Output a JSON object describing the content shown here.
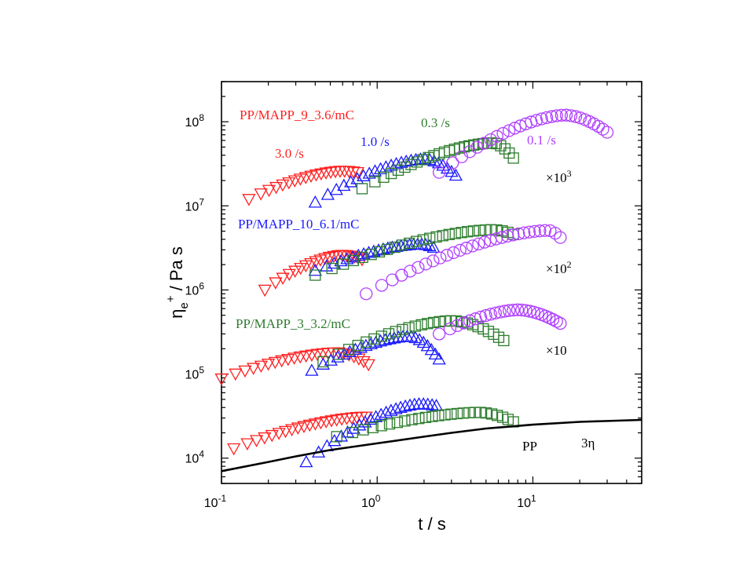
{
  "chart_data": {
    "type": "scatter",
    "xlabel": "t / s",
    "ylabel": "η_e^+ / Pa s",
    "xscale": "log",
    "yscale": "log",
    "xlim": [
      0.1,
      50
    ],
    "ylim": [
      5000,
      300000000
    ],
    "grid": false,
    "legend": "none",
    "x_ticks": [
      {
        "value": 0.1,
        "base": "10",
        "exp": "-1"
      },
      {
        "value": 1,
        "base": "10",
        "exp": "0"
      },
      {
        "value": 10,
        "base": "10",
        "exp": "1"
      }
    ],
    "y_ticks": [
      {
        "value": 10000,
        "base": "10",
        "exp": "4"
      },
      {
        "value": 100000,
        "base": "10",
        "exp": "5"
      },
      {
        "value": 1000000,
        "base": "10",
        "exp": "6"
      },
      {
        "value": 10000000,
        "base": "10",
        "exp": "7"
      },
      {
        "value": 100000000,
        "base": "10",
        "exp": "8"
      }
    ],
    "colors": {
      "rate_3_0": "#ff2020",
      "rate_1_0": "#1a1aff",
      "rate_0_3": "#2e7d2e",
      "rate_0_1": "#b040ff",
      "linear": "#000000"
    },
    "groups": [
      {
        "label": "PP",
        "shift_label": "",
        "series": [
          {
            "rate": 3.0,
            "marker": "triangle-down",
            "t_start": 0.12,
            "t_end": 0.85,
            "y_start": 13000,
            "y_end": 31000,
            "n": 22,
            "peak_t": 0.85,
            "peak_y": 31000,
            "down": 0.0
          },
          {
            "rate": 1.0,
            "marker": "triangle-up",
            "t_start": 0.35,
            "t_end": 2.4,
            "y_start": 9000,
            "y_end": 42000,
            "n": 24,
            "peak_t": 1.9,
            "peak_y": 44000,
            "down": 0.12
          },
          {
            "rate": 0.3,
            "marker": "square",
            "t_start": 0.55,
            "t_end": 7.5,
            "y_start": 18000,
            "y_end": 27000,
            "n": 26,
            "peak_t": 4.5,
            "peak_y": 35000,
            "down": 0.25
          }
        ]
      },
      {
        "label": "PP/MAPP_3_3.2/mC",
        "shift_label": "×10",
        "series": [
          {
            "rate": 3.0,
            "marker": "triangle-down",
            "t_start": 0.1,
            "t_end": 0.88,
            "y_start": 88000,
            "y_end": 130000,
            "n": 24,
            "peak_t": 0.55,
            "peak_y": 180000,
            "down": 0.2
          },
          {
            "rate": 1.0,
            "marker": "triangle-up",
            "t_start": 0.38,
            "t_end": 2.5,
            "y_start": 110000,
            "y_end": 150000,
            "n": 26,
            "peak_t": 1.6,
            "peak_y": 280000,
            "down": 0.3
          },
          {
            "rate": 0.3,
            "marker": "square",
            "t_start": 0.45,
            "t_end": 6.5,
            "y_start": 140000,
            "y_end": 250000,
            "n": 28,
            "peak_t": 3.0,
            "peak_y": 430000,
            "down": 0.25
          },
          {
            "rate": 0.1,
            "marker": "circle",
            "t_start": 2.5,
            "t_end": 15,
            "y_start": 300000,
            "y_end": 400000,
            "n": 26,
            "peak_t": 8.0,
            "peak_y": 580000,
            "down": 0.15
          }
        ]
      },
      {
        "label": "PP/MAPP_10_6.1/mC",
        "shift_label": "×10²",
        "series": [
          {
            "rate": 3.0,
            "marker": "triangle-down",
            "t_start": 0.19,
            "t_end": 0.8,
            "y_start": 1000000,
            "y_end": 2300000,
            "n": 20,
            "peak_t": 0.6,
            "peak_y": 2600000,
            "down": 0.05
          },
          {
            "rate": 1.0,
            "marker": "triangle-up",
            "t_start": 0.4,
            "t_end": 2.3,
            "y_start": 1700000,
            "y_end": 3200000,
            "n": 24,
            "peak_t": 1.9,
            "peak_y": 3500000,
            "down": 0.05
          },
          {
            "rate": 0.3,
            "marker": "square",
            "t_start": 0.4,
            "t_end": 7.5,
            "y_start": 1500000,
            "y_end": 4600000,
            "n": 28,
            "peak_t": 5.5,
            "peak_y": 5200000,
            "down": 0.05
          },
          {
            "rate": 0.1,
            "marker": "circle",
            "t_start": 0.85,
            "t_end": 15,
            "y_start": 900000,
            "y_end": 4200000,
            "n": 30,
            "peak_t": 12.5,
            "peak_y": 5100000,
            "down": 0.08
          }
        ]
      },
      {
        "label": "PP/MAPP_9_3.6/mC",
        "shift_label": "×10³",
        "series": [
          {
            "rate": 3.0,
            "marker": "triangle-down",
            "t_start": 0.15,
            "t_end": 0.75,
            "y_start": 12000000,
            "y_end": 25000000,
            "n": 20,
            "peak_t": 0.6,
            "peak_y": 26000000,
            "down": 0.05
          },
          {
            "rate": 1.0,
            "marker": "triangle-up",
            "t_start": 0.4,
            "t_end": 3.2,
            "y_start": 11000000,
            "y_end": 23000000,
            "n": 26,
            "peak_t": 2.0,
            "peak_y": 36000000,
            "down": 0.2
          },
          {
            "rate": 0.3,
            "marker": "square",
            "t_start": 0.8,
            "t_end": 7.5,
            "y_start": 16000000,
            "y_end": 37000000,
            "n": 28,
            "peak_t": 5.5,
            "peak_y": 56000000,
            "down": 0.18
          },
          {
            "rate": 0.1,
            "marker": "circle",
            "t_start": 2.5,
            "t_end": 30,
            "y_start": 25000000,
            "y_end": 75000000,
            "n": 30,
            "peak_t": 16,
            "peak_y": 120000000,
            "down": 0.18
          }
        ]
      }
    ],
    "linear_curve": {
      "label": "3η",
      "x": [
        0.1,
        0.2,
        0.3,
        0.5,
        1,
        2,
        3,
        5,
        10,
        20,
        50
      ],
      "y": [
        7000,
        9000,
        10500,
        12500,
        15000,
        18000,
        20000,
        22500,
        25000,
        27000,
        28500
      ]
    },
    "annotations": {
      "pp_label": "PP",
      "three_eta": "3η",
      "group1_label": "PP/MAPP_3_3.2/mC",
      "group2_label": "PP/MAPP_10_6.1/mC",
      "group3_label": "PP/MAPP_9_3.6/mC",
      "shift_10": "×10",
      "shift_100_base": "×10",
      "shift_100_exp": "2",
      "shift_1000_base": "×10",
      "shift_1000_exp": "3",
      "rate_3_0": "3.0 /s",
      "rate_1_0": "1.0 /s",
      "rate_0_3": "0.3 /s",
      "rate_0_1": "0.1 /s"
    }
  }
}
